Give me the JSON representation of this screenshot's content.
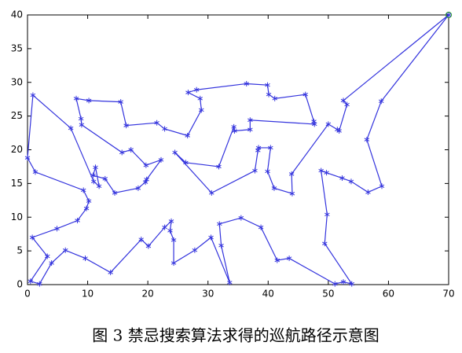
{
  "chart_data": {
    "type": "line",
    "caption": "图 3 禁忌搜索算法求得的巡航路径示意图",
    "xlim": [
      0,
      70
    ],
    "xticks": [
      0,
      10,
      20,
      30,
      40,
      50,
      60,
      70
    ],
    "ylim": [
      0,
      40
    ],
    "yticks": [
      0,
      5,
      10,
      15,
      20,
      25,
      30,
      35,
      40
    ],
    "start_marker_color": "#2ca02c",
    "series": [
      {
        "color": "#3333dd",
        "x": [
          70,
          58.8,
          56.4,
          58.9,
          56.6,
          53.8,
          52.3,
          49.7,
          48.8,
          49.8,
          49.4,
          53.9,
          52.5,
          51.1,
          43.5,
          41.5,
          38.8,
          35.5,
          31.9,
          32.2,
          33.6,
          30.5,
          27.8,
          24.3,
          24.3,
          23.7,
          23.9,
          22.8,
          20.1,
          18.9,
          13.8,
          9.6,
          6.3,
          4.0,
          2.0,
          0.5,
          3.3,
          0.8,
          4.9,
          8.3,
          9.8,
          10.2,
          9.3,
          1.3,
          0,
          0.9,
          7.2,
          11.0,
          11.9,
          11.3,
          10.9,
          12.9,
          14.5,
          18.4,
          19.6,
          19.8,
          22.2,
          19.7,
          17.2,
          15.7,
          9.0,
          8.9,
          8.1,
          10.2,
          15.5,
          16.4,
          21.5,
          22.8,
          26.6,
          28.9,
          28.7,
          26.7,
          28.1,
          36.4,
          39.9,
          40.1,
          41.1,
          46.2,
          47.6,
          47.7,
          37.0,
          37.0,
          34.4,
          34.3,
          31.8,
          26.3,
          24.5,
          30.6,
          37.8,
          38.3,
          38.4,
          40.4,
          39.9,
          41.0,
          44.0,
          43.9,
          50.0,
          51.5,
          51.8,
          53.1,
          52.5,
          70
        ],
        "values": [
          40,
          27.2,
          21.5,
          14.6,
          13.7,
          15.3,
          15.8,
          16.6,
          16.9,
          10.4,
          6.1,
          0.1,
          0.4,
          0.1,
          3.9,
          3.6,
          8.5,
          9.9,
          9.0,
          5.8,
          0.3,
          7.0,
          5.1,
          3.2,
          6.6,
          8.0,
          9.4,
          8.5,
          5.7,
          6.7,
          1.8,
          3.9,
          5.1,
          3.2,
          0.1,
          0.5,
          4.2,
          7.0,
          8.3,
          9.5,
          11.3,
          12.4,
          14.0,
          16.7,
          18.8,
          28.1,
          23.2,
          15.3,
          14.6,
          17.4,
          16.2,
          15.7,
          13.6,
          14.3,
          15.2,
          15.6,
          18.5,
          17.7,
          20.0,
          19.6,
          23.7,
          24.6,
          27.6,
          27.3,
          27.1,
          23.6,
          24.0,
          23.1,
          22.1,
          25.9,
          27.6,
          28.5,
          28.9,
          29.8,
          29.6,
          28.2,
          27.6,
          28.2,
          24.2,
          23.8,
          24.4,
          23.0,
          22.8,
          23.4,
          17.5,
          18.1,
          19.6,
          13.6,
          16.9,
          19.9,
          20.3,
          20.3,
          16.8,
          14.3,
          13.5,
          16.4,
          23.8,
          23.0,
          22.8,
          26.7,
          27.3,
          40
        ]
      }
    ]
  }
}
